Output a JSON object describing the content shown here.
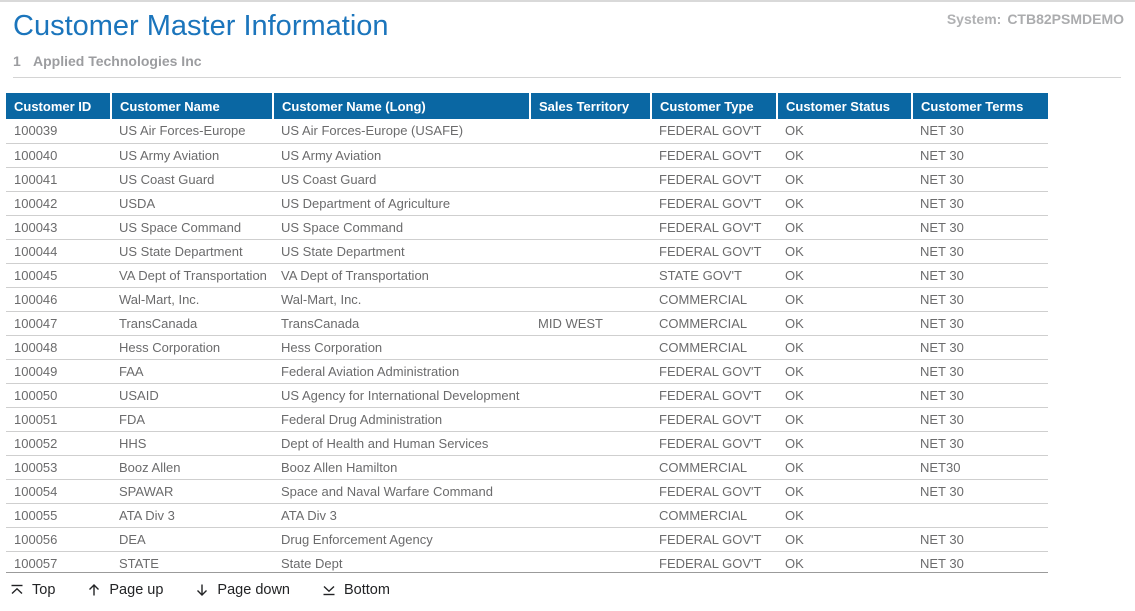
{
  "header": {
    "title": "Customer Master Information",
    "system_label": "System:",
    "system_value": "CTB82PSMDEMO",
    "record_number": "1",
    "record_name": "Applied Technologies Inc"
  },
  "colors": {
    "header_bg": "#0a67a3",
    "title": "#1b75bc"
  },
  "table": {
    "columns": [
      "Customer ID",
      "Customer Name",
      "Customer Name (Long)",
      "Sales Territory",
      "Customer Type",
      "Customer Status",
      "Customer Terms"
    ],
    "rows": [
      [
        "100039",
        "US Air Forces-Europe",
        "US Air Forces-Europe (USAFE)",
        "",
        "FEDERAL GOV'T",
        "OK",
        "NET 30"
      ],
      [
        "100040",
        "US Army Aviation",
        "US Army Aviation",
        "",
        "FEDERAL GOV'T",
        "OK",
        "NET 30"
      ],
      [
        "100041",
        "US Coast Guard",
        "US Coast Guard",
        "",
        "FEDERAL GOV'T",
        "OK",
        "NET 30"
      ],
      [
        "100042",
        "USDA",
        "US Department of Agriculture",
        "",
        "FEDERAL GOV'T",
        "OK",
        "NET 30"
      ],
      [
        "100043",
        "US Space Command",
        "US Space Command",
        "",
        "FEDERAL GOV'T",
        "OK",
        "NET 30"
      ],
      [
        "100044",
        "US State Department",
        "US State Department",
        "",
        "FEDERAL GOV'T",
        "OK",
        "NET 30"
      ],
      [
        "100045",
        "VA Dept of Transportation",
        "VA Dept of Transportation",
        "",
        "STATE GOV'T",
        "OK",
        "NET 30"
      ],
      [
        "100046",
        "Wal-Mart, Inc.",
        "Wal-Mart, Inc.",
        "",
        "COMMERCIAL",
        "OK",
        "NET 30"
      ],
      [
        "100047",
        "TransCanada",
        "TransCanada",
        "MID WEST",
        "COMMERCIAL",
        "OK",
        "NET 30"
      ],
      [
        "100048",
        "Hess Corporation",
        "Hess Corporation",
        "",
        "COMMERCIAL",
        "OK",
        "NET 30"
      ],
      [
        "100049",
        "FAA",
        "Federal Aviation Administration",
        "",
        "FEDERAL GOV'T",
        "OK",
        "NET 30"
      ],
      [
        "100050",
        "USAID",
        "US Agency for International Development",
        "",
        "FEDERAL GOV'T",
        "OK",
        "NET 30"
      ],
      [
        "100051",
        "FDA",
        "Federal Drug Administration",
        "",
        "FEDERAL GOV'T",
        "OK",
        "NET 30"
      ],
      [
        "100052",
        "HHS",
        "Dept of Health and Human Services",
        "",
        "FEDERAL GOV'T",
        "OK",
        "NET 30"
      ],
      [
        "100053",
        "Booz Allen",
        "Booz Allen Hamilton",
        "",
        "COMMERCIAL",
        "OK",
        "NET30"
      ],
      [
        "100054",
        "SPAWAR",
        "Space and Naval Warfare Command",
        "",
        "FEDERAL GOV'T",
        "OK",
        "NET 30"
      ],
      [
        "100055",
        "ATA Div 3",
        "ATA Div 3",
        "",
        "COMMERCIAL",
        "OK",
        ""
      ],
      [
        "100056",
        "DEA",
        "Drug Enforcement Agency",
        "",
        "FEDERAL GOV'T",
        "OK",
        "NET 30"
      ],
      [
        "100057",
        "STATE",
        "State Dept",
        "",
        "FEDERAL GOV'T",
        "OK",
        "NET 30"
      ]
    ]
  },
  "toolbar": {
    "top_label": "Top",
    "page_up_label": "Page up",
    "page_down_label": "Page down",
    "bottom_label": "Bottom"
  }
}
